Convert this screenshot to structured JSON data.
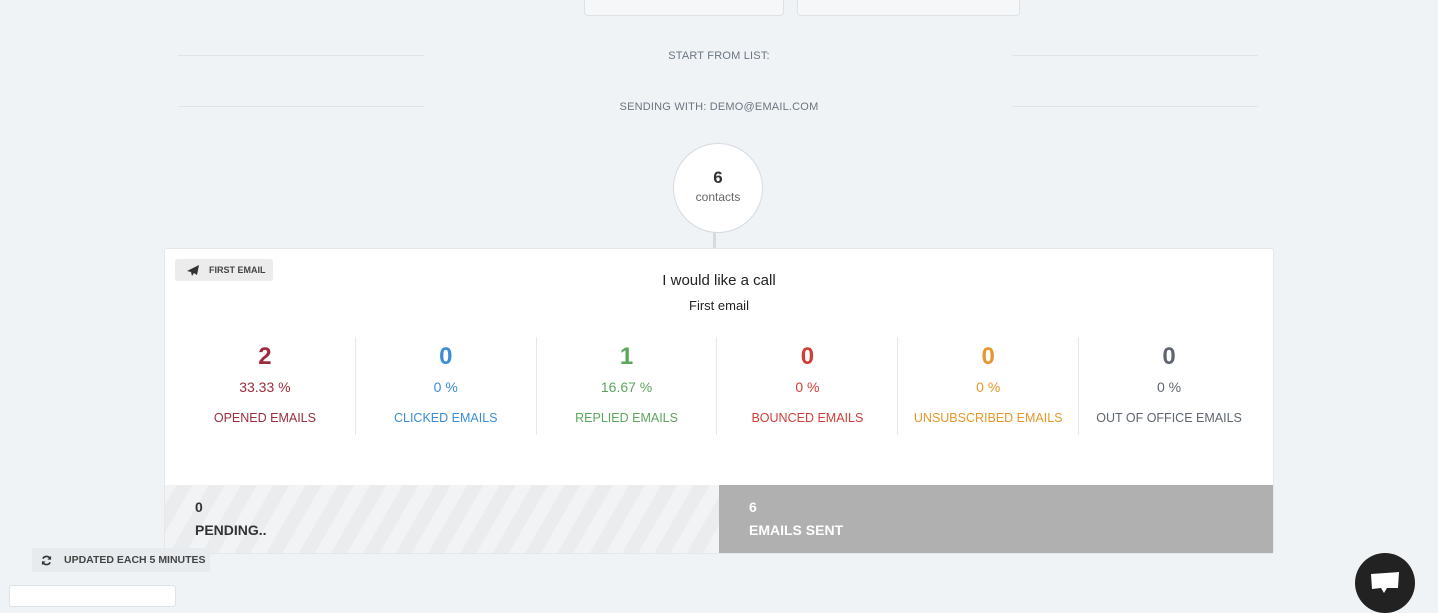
{
  "header": {
    "start_from_list": "START FROM LIST:",
    "sending_with": "SENDING WITH: DEMO@EMAIL.COM"
  },
  "contacts": {
    "count": "6",
    "label": "contacts"
  },
  "step": {
    "tag_label": "FIRST EMAIL",
    "tag_icon": "paper-plane-icon",
    "subject": "I would like a call",
    "name": "First email"
  },
  "stats": [
    {
      "value": "2",
      "percent": "33.33 %",
      "label": "OPENED EMAILS",
      "color": "#9b2d3c"
    },
    {
      "value": "0",
      "percent": "0 %",
      "label": "CLICKED EMAILS",
      "color": "#3b8dd4"
    },
    {
      "value": "1",
      "percent": "16.67 %",
      "label": "REPLIED EMAILS",
      "color": "#5ca55c"
    },
    {
      "value": "0",
      "percent": "0 %",
      "label": "BOUNCED EMAILS",
      "color": "#cf3f38"
    },
    {
      "value": "0",
      "percent": "0 %",
      "label": "UNSUBSCRIBED EMAILS",
      "color": "#e8962a"
    },
    {
      "value": "0",
      "percent": "0 %",
      "label": "OUT OF OFFICE EMAILS",
      "color": "#5f6670"
    }
  ],
  "progress": {
    "pending_count": "0",
    "pending_label": "PENDING..",
    "sent_count": "6",
    "sent_label": "EMAILS SENT"
  },
  "footer": {
    "updated_label": "UPDATED EACH 5 MINUTES",
    "updated_icon": "refresh-icon",
    "chat_icon": "chat-bubble-icon"
  }
}
